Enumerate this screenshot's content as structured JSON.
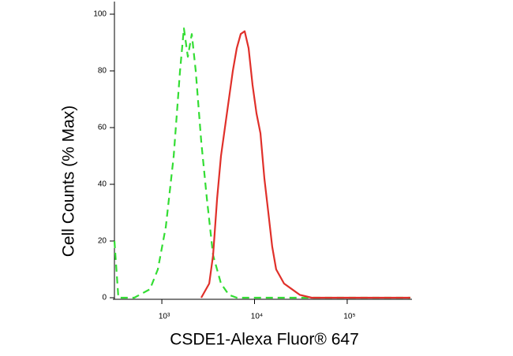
{
  "chart_data": {
    "type": "line",
    "x_label": "CSDE1-Alexa Fluor® 647",
    "y_label": "Cell Counts (% Max)",
    "x_scale": "log",
    "xlim": [
      308,
      500000
    ],
    "ylim": [
      0,
      100
    ],
    "xticks": [
      {
        "value": 1000,
        "label": "10³"
      },
      {
        "value": 10000,
        "label": "10⁴"
      },
      {
        "value": 100000,
        "label": "10⁵"
      }
    ],
    "yticks": [
      0,
      20,
      40,
      60,
      80,
      100
    ],
    "grid": false,
    "series": [
      {
        "color": "#33dd33",
        "line_style": "dashed",
        "x": [
          308,
          340,
          504,
          745,
          906,
          1103,
          1342,
          1570,
          1731,
          1909,
          2105,
          2321,
          2664,
          3058,
          3575,
          4348,
          5285,
          6433,
          14090,
          479700
        ],
        "values": [
          20,
          0,
          0,
          3,
          10,
          25,
          50,
          80,
          95,
          85,
          93,
          80,
          55,
          35,
          15,
          5,
          1,
          0,
          0,
          0
        ]
      },
      {
        "color": "#e0302a",
        "line_style": "solid",
        "x": [
          2664,
          3245,
          3575,
          3945,
          4348,
          4795,
          5285,
          5834,
          6433,
          7096,
          7832,
          8630,
          9520,
          10500,
          11590,
          12770,
          14090,
          15530,
          17130,
          20840,
          25350,
          30830,
          41380,
          479700
        ],
        "values": [
          0,
          5,
          15,
          35,
          50,
          60,
          70,
          80,
          88,
          93,
          94,
          88,
          75,
          65,
          58,
          42,
          30,
          18,
          10,
          5,
          3,
          1,
          0,
          0
        ]
      }
    ]
  }
}
